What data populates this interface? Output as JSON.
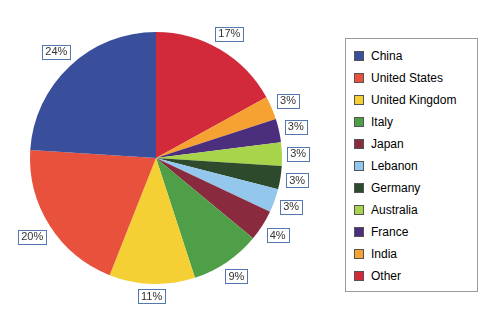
{
  "chart_data": {
    "type": "pie",
    "categories": [
      "China",
      "United States",
      "United Kingdom",
      "Italy",
      "Japan",
      "Lebanon",
      "Germany",
      "Australia",
      "France",
      "India",
      "Other"
    ],
    "values": [
      24,
      20,
      11,
      9,
      4,
      3,
      3,
      3,
      3,
      3,
      17
    ],
    "value_labels": [
      "24%",
      "20%",
      "11%",
      "9%",
      "4%",
      "3%",
      "3%",
      "3%",
      "3%",
      "3%",
      "17%"
    ],
    "colors": [
      "#3a4f9c",
      "#e8523c",
      "#f4d034",
      "#4e9f48",
      "#8a2a3e",
      "#93c8ec",
      "#2e4a2c",
      "#a8d44c",
      "#4c2f7c",
      "#f5a232",
      "#d22a3a"
    ],
    "legend": "right",
    "data_labels": true
  }
}
